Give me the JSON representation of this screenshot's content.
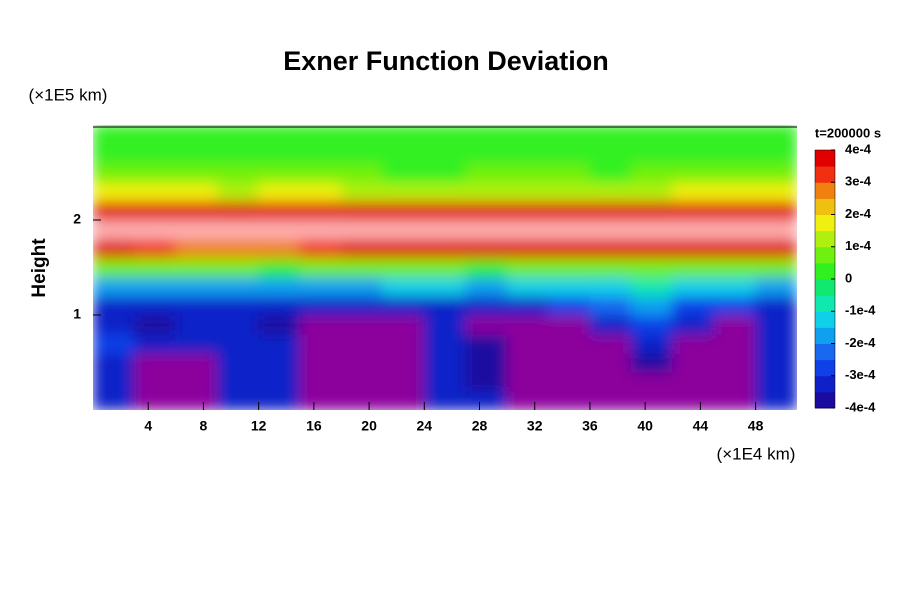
{
  "chart_data": {
    "type": "contour",
    "title": "Exner Function Deviation",
    "x_unit": "(×1E4 km)",
    "y_unit": "(×1E5 km)",
    "y_label": "Height",
    "colorbar_title": "t=200000 s",
    "xlim": [
      0,
      51
    ],
    "ylim": [
      0,
      3
    ],
    "xticks": [
      4,
      8,
      12,
      16,
      20,
      24,
      28,
      32,
      36,
      40,
      44,
      48
    ],
    "yticks": [
      1,
      2
    ],
    "clim": [
      -0.0004,
      0.0004
    ],
    "cticks": [
      {
        "value": 0.0004,
        "label": "4e-4"
      },
      {
        "value": 0.0003,
        "label": "3e-4"
      },
      {
        "value": 0.0002,
        "label": "2e-4"
      },
      {
        "value": 0.0001,
        "label": "1e-4"
      },
      0,
      {
        "value": -0.0001,
        "label": "-1e-4"
      },
      {
        "value": -0.0002,
        "label": "-2e-4"
      },
      {
        "value": -0.0003,
        "label": "-3e-4"
      },
      {
        "value": -0.0004,
        "label": "-4e-4"
      }
    ],
    "colors": [
      "#8c009c",
      "#1a0aa0",
      "#1020c8",
      "#1040e8",
      "#1868f0",
      "#10a0f0",
      "#10d0e8",
      "#10e8b0",
      "#10e870",
      "#30f020",
      "#70f010",
      "#b0f010",
      "#f0f010",
      "#f0c010",
      "#f08010",
      "#f03010",
      "#e00000",
      "#ffb0b0"
    ],
    "z": [
      [
        -0.00033,
        -0.00042,
        -0.00042,
        -0.00035,
        -0.00033,
        -0.00042,
        -0.00042,
        -0.00042,
        -0.00034,
        -0.00035,
        -0.00042,
        -0.00042,
        -0.00042,
        -0.00042,
        -0.00042,
        -0.00042,
        -0.00034
      ],
      [
        -0.00032,
        -0.00042,
        -0.00042,
        -0.00034,
        -0.00033,
        -0.00042,
        -0.00042,
        -0.00042,
        -0.00034,
        -0.00036,
        -0.00042,
        -0.00042,
        -0.00042,
        -0.00042,
        -0.00042,
        -0.00042,
        -0.00035
      ],
      [
        -0.00031,
        -0.00041,
        -0.00041,
        -0.00033,
        -0.00034,
        -0.00042,
        -0.00042,
        -0.00042,
        -0.00033,
        -0.00036,
        -0.00042,
        -0.00042,
        -0.00042,
        -0.0004,
        -0.00042,
        -0.00042,
        -0.00035
      ],
      [
        -0.0003,
        -0.00033,
        -0.00032,
        -0.00033,
        -0.00035,
        -0.00042,
        -0.00042,
        -0.00042,
        -0.00033,
        -0.00037,
        -0.00042,
        -0.00042,
        -0.00041,
        -0.00034,
        -0.00042,
        -0.00042,
        -0.00034
      ],
      [
        -0.00031,
        -0.0004,
        -0.00034,
        -0.00033,
        -0.00036,
        -0.00042,
        -0.00042,
        -0.00042,
        -0.00033,
        -0.00041,
        -0.00042,
        -0.00041,
        -0.00035,
        -0.00028,
        -0.00034,
        -0.00041,
        -0.00033
      ],
      [
        -0.00032,
        -0.00033,
        -0.00033,
        -0.00033,
        -0.00033,
        -0.00033,
        -0.00034,
        -0.00034,
        -0.00033,
        -0.00032,
        -0.00031,
        -0.00028,
        -0.00022,
        -0.0002,
        -0.00026,
        -0.0003,
        -0.00031
      ],
      [
        -0.00018,
        -0.00018,
        -0.00019,
        -0.00019,
        -0.00019,
        -0.00017,
        -0.00016,
        -0.00015,
        -0.00012,
        -0.00016,
        -0.00013,
        -0.00012,
        -0.00011,
        -0.0001,
        -0.00012,
        -0.00015,
        -0.00017
      ],
      [
        8e-05,
        6e-05,
        6e-05,
        5e-05,
        4e-05,
        7e-05,
        9e-05,
        8e-05,
        6e-05,
        3e-05,
        5e-05,
        6e-05,
        7e-05,
        7e-05,
        7e-05,
        8e-05,
        8e-05
      ],
      [
        0.00036,
        0.00032,
        0.00028,
        0.00026,
        0.00027,
        0.00031,
        0.00035,
        0.00037,
        0.00037,
        0.00036,
        0.00036,
        0.00036,
        0.00035,
        0.00036,
        0.00036,
        0.00037,
        0.00036
      ],
      [
        0.00045,
        0.00045,
        0.00045,
        0.00045,
        0.00045,
        0.00045,
        0.00045,
        0.00045,
        0.00045,
        0.00045,
        0.00045,
        0.00045,
        0.00045,
        0.00045,
        0.00045,
        0.00045,
        0.00045
      ],
      [
        0.00037,
        0.00036,
        0.00036,
        0.00035,
        0.00035,
        0.00036,
        0.00036,
        0.00036,
        0.00036,
        0.00036,
        0.00036,
        0.00036,
        0.00036,
        0.00035,
        0.00036,
        0.00037,
        0.00037
      ],
      [
        0.00016,
        0.00018,
        0.00017,
        0.00014,
        0.00015,
        0.00017,
        0.00014,
        0.00012,
        0.00012,
        0.00013,
        0.00013,
        0.00013,
        0.00012,
        0.00014,
        0.00016,
        0.00018,
        0.00016
      ],
      [
        6e-05,
        6e-05,
        6e-05,
        5e-05,
        5e-05,
        6e-05,
        5e-05,
        4e-05,
        4e-05,
        5e-05,
        5e-05,
        5e-05,
        4e-05,
        5e-05,
        6e-05,
        6e-05,
        6e-05
      ],
      [
        3e-05,
        3e-05,
        3e-05,
        3e-05,
        3e-05,
        3e-05,
        3e-05,
        3e-05,
        3e-05,
        3e-05,
        3e-05,
        3e-05,
        3e-05,
        3e-05,
        3e-05,
        3e-05,
        3e-05
      ],
      [
        2e-05,
        2e-05,
        2e-05,
        2e-05,
        2e-05,
        2e-05,
        2e-05,
        2e-05,
        2e-05,
        2e-05,
        2e-05,
        2e-05,
        2e-05,
        2e-05,
        2e-05,
        2e-05,
        2e-05
      ]
    ]
  }
}
